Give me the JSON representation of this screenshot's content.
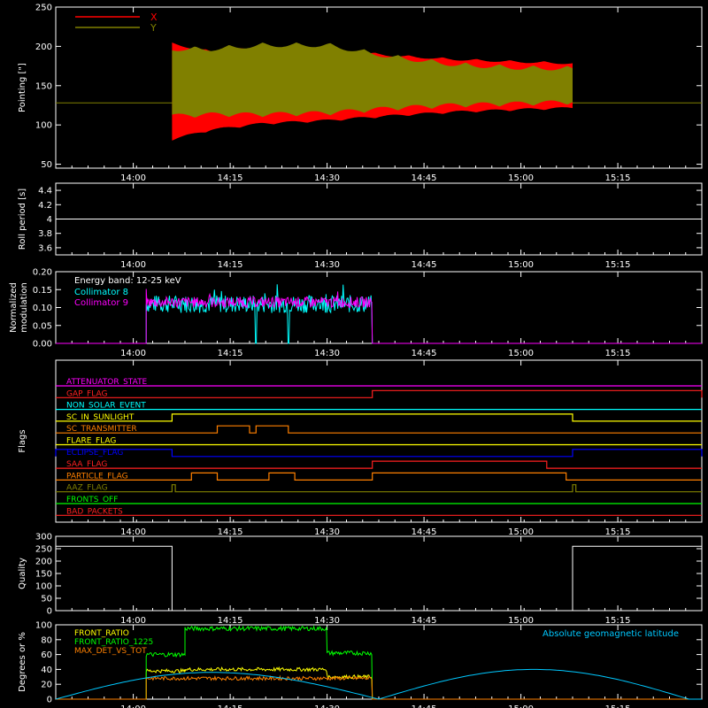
{
  "chart_data": [
    {
      "type": "area",
      "ylabel": "Pointing [\"]",
      "xlim": [
        "13:48",
        "15:28"
      ],
      "ylim": [
        45,
        250
      ],
      "yticks": [
        50,
        100,
        150,
        200,
        250
      ],
      "xticks": [
        "14:00",
        "14:15",
        "14:30",
        "14:45",
        "15:00",
        "15:15"
      ],
      "legend": [
        "X",
        "Y"
      ],
      "legend_colors": [
        "#ff0000",
        "#808000"
      ],
      "baseline": 128,
      "data_start": "14:06",
      "data_end": "15:08",
      "series": [
        {
          "name": "X",
          "color": "#ff0000",
          "upper": [
            [
              "14:06",
              205
            ],
            [
              "14:12",
              195
            ],
            [
              "14:20",
              200
            ],
            [
              "14:30",
              198
            ],
            [
              "14:40",
              190
            ],
            [
              "14:50",
              185
            ],
            [
              "15:00",
              182
            ],
            [
              "15:08",
              180
            ]
          ],
          "lower": [
            [
              "14:06",
              80
            ],
            [
              "14:12",
              92
            ],
            [
              "14:20",
              100
            ],
            [
              "14:30",
              104
            ],
            [
              "14:40",
              110
            ],
            [
              "14:50",
              115
            ],
            [
              "15:00",
              118
            ],
            [
              "15:08",
              120
            ]
          ]
        },
        {
          "name": "Y",
          "color": "#808000",
          "upper": [
            [
              "14:06",
              200
            ],
            [
              "14:12",
              200
            ],
            [
              "14:20",
              205
            ],
            [
              "14:30",
              205
            ],
            [
              "14:40",
              190
            ],
            [
              "14:50",
              180
            ],
            [
              "15:00",
              176
            ],
            [
              "15:08",
              175
            ]
          ],
          "lower": [
            [
              "14:06",
              108
            ],
            [
              "14:12",
              110
            ],
            [
              "14:20",
              110
            ],
            [
              "14:30",
              112
            ],
            [
              "14:40",
              118
            ],
            [
              "14:50",
              122
            ],
            [
              "15:00",
              124
            ],
            [
              "15:08",
              126
            ]
          ]
        }
      ]
    },
    {
      "type": "line",
      "ylabel": "Roll period [s]",
      "ylim": [
        3.5,
        4.5
      ],
      "yticks": [
        3.6,
        3.8,
        4.0,
        4.2,
        4.4
      ],
      "xticks": [
        "14:00",
        "14:15",
        "14:30",
        "14:45",
        "15:00",
        "15:15"
      ],
      "series": [
        {
          "name": "",
          "color": "#ffffff",
          "points": [
            [
              "13:48",
              4.0
            ],
            [
              "15:28",
              4.0
            ]
          ]
        }
      ]
    },
    {
      "type": "line",
      "ylabel": "Normalized modulation",
      "ylim": [
        0,
        0.2
      ],
      "yticks": [
        0.0,
        0.05,
        0.1,
        0.15,
        0.2
      ],
      "ytick_labels": [
        "0.00",
        "0.05",
        "0.10",
        "0.15",
        "0.20"
      ],
      "xticks": [
        "14:00",
        "14:15",
        "14:30",
        "14:45",
        "15:00",
        "15:15"
      ],
      "annotation": "Energy band: 12-25 keV",
      "data_start": "14:02",
      "data_end": "14:37",
      "series": [
        {
          "name": "Collimator 8",
          "color": "#00ffff",
          "mean": 0.11,
          "noise": 0.025,
          "drops": [
            "14:19",
            "14:24"
          ]
        },
        {
          "name": "Collimator 9",
          "color": "#ff00ff",
          "mean": 0.115,
          "noise": 0.015,
          "drops": []
        }
      ]
    },
    {
      "type": "line",
      "ylabel": "Flags",
      "xticks": [
        "14:00",
        "14:15",
        "14:30",
        "14:45",
        "15:00",
        "15:15"
      ],
      "flags": [
        {
          "name": "ATTENUATOR_STATE",
          "color": "#ff00ff",
          "segments": []
        },
        {
          "name": "GAP_FLAG",
          "color": "#ff2020",
          "segments": [
            [
              "14:37",
              "15:28"
            ]
          ]
        },
        {
          "name": "NON_SOLAR_EVENT",
          "color": "#00ffff",
          "segments": []
        },
        {
          "name": "SC_IN_SUNLIGHT",
          "color": "#ffff00",
          "segments": [
            [
              "14:06",
              "15:08"
            ]
          ]
        },
        {
          "name": "SC_TRANSMITTER",
          "color": "#ff8000",
          "segments": [
            [
              "14:13",
              "14:18"
            ],
            [
              "14:19",
              "14:24"
            ]
          ]
        },
        {
          "name": "FLARE_FLAG",
          "color": "#ffff00",
          "segments": []
        },
        {
          "name": "ECLIPSE_FLAG",
          "color": "#0000ff",
          "segments": [
            [
              "13:48",
              "14:06"
            ],
            [
              "15:08",
              "15:28"
            ]
          ]
        },
        {
          "name": "SAA_FLAG",
          "color": "#ff2020",
          "segments": [
            [
              "14:37",
              "15:04"
            ]
          ]
        },
        {
          "name": "PARTICLE_FLAG",
          "color": "#ff8000",
          "segments": [
            [
              "14:09",
              "14:13"
            ],
            [
              "14:21",
              "14:25"
            ],
            [
              "14:37",
              "15:07"
            ]
          ]
        },
        {
          "name": "AAZ_FLAG",
          "color": "#808000",
          "segments": [
            [
              "14:06",
              "14:06.5"
            ],
            [
              "15:08",
              "15:08.5"
            ]
          ]
        },
        {
          "name": "FRONTS_OFF",
          "color": "#00ff00",
          "segments": []
        },
        {
          "name": "BAD_PACKETS",
          "color": "#ff2020",
          "segments": []
        }
      ]
    },
    {
      "type": "line",
      "ylabel": "Quality",
      "ylim": [
        0,
        300
      ],
      "yticks": [
        0,
        50,
        100,
        150,
        200,
        250,
        300
      ],
      "xticks": [
        "14:00",
        "14:15",
        "14:30",
        "14:45",
        "15:00",
        "15:15"
      ],
      "series": [
        {
          "name": "",
          "color": "#ffffff",
          "points": [
            [
              "13:48",
              260
            ],
            [
              "14:06",
              260
            ],
            [
              "14:06",
              0
            ],
            [
              "15:08",
              0
            ],
            [
              "15:08",
              260
            ],
            [
              "15:28",
              260
            ]
          ]
        }
      ]
    },
    {
      "type": "line",
      "ylabel": "Degrees or %",
      "ylim": [
        0,
        100
      ],
      "yticks": [
        0,
        20,
        40,
        60,
        80,
        100
      ],
      "xticks": [
        "14:00",
        "14:15",
        "14:30",
        "14:45",
        "15:00",
        "15:15"
      ],
      "annotation": "Absolute geomagnetic latitude",
      "series": [
        {
          "name": "FRONT_RATIO",
          "color": "#ffff00",
          "segments": [
            [
              "14:02",
              "14:08",
              38
            ],
            [
              "14:08",
              "14:30",
              40
            ],
            [
              "14:30",
              "14:37",
              30
            ]
          ]
        },
        {
          "name": "FRONT_RATIO_1225",
          "color": "#00ff00",
          "segments": [
            [
              "14:02",
              "14:08",
              60
            ],
            [
              "14:08",
              "14:30",
              95
            ],
            [
              "14:30",
              "14:37",
              62
            ]
          ]
        },
        {
          "name": "MAX_DET_VS_TOT",
          "color": "#ff8000",
          "segments": [
            [
              "14:02",
              "14:37",
              28
            ]
          ]
        },
        {
          "name": "Absolute geomagnetic latitude",
          "color": "#00c8ff",
          "latitude": [
            [
              "13:48",
              0
            ],
            [
              "14:12",
              36
            ],
            [
              "14:38",
              0
            ],
            [
              "15:02",
              40
            ],
            [
              "15:26",
              0
            ]
          ]
        }
      ]
    }
  ]
}
